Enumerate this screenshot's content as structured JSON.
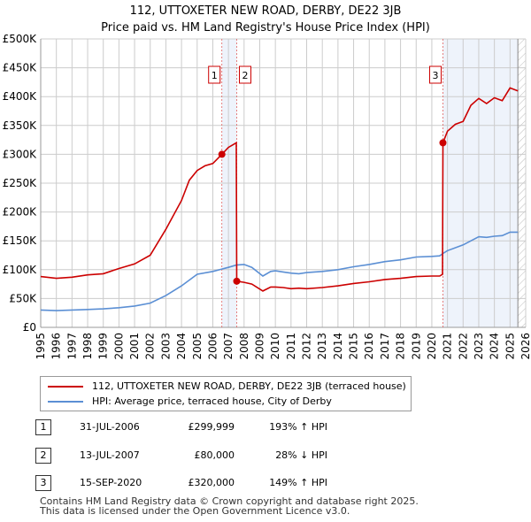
{
  "chart_data": {
    "type": "line",
    "title": "112, UTTOXETER NEW ROAD, DERBY, DE22 3JB",
    "subtitle": "Price paid vs. HM Land Registry's House Price Index (HPI)",
    "xlabel": "",
    "ylabel": "",
    "xlim": [
      1995,
      2026
    ],
    "ylim": [
      0,
      500000
    ],
    "y_ticks": [
      "£0",
      "£50K",
      "£100K",
      "£150K",
      "£200K",
      "£250K",
      "£300K",
      "£350K",
      "£400K",
      "£450K",
      "£500K"
    ],
    "x_ticks": [
      "1995",
      "1996",
      "1997",
      "1998",
      "1999",
      "2000",
      "2001",
      "2002",
      "2003",
      "2004",
      "2005",
      "2006",
      "2007",
      "2008",
      "2009",
      "2010",
      "2011",
      "2012",
      "2013",
      "2014",
      "2015",
      "2016",
      "2017",
      "2018",
      "2019",
      "2020",
      "2021",
      "2022",
      "2023",
      "2024",
      "2025",
      "2026"
    ],
    "grid": true,
    "series": [
      {
        "name": "112, UTTOXETER NEW ROAD, DERBY, DE22 3JB (terraced house)",
        "color": "#cc0000",
        "x": [
          1995,
          1996,
          1997,
          1998,
          1999,
          2000,
          2001,
          2002,
          2003,
          2004,
          2004.5,
          2005,
          2005.5,
          2006,
          2006.58,
          2007,
          2007.5,
          2007.53,
          2008,
          2008.5,
          2009.2,
          2009.7,
          2010,
          2010.5,
          2011,
          2011.5,
          2012,
          2013,
          2014,
          2015,
          2016,
          2017,
          2018,
          2019,
          2020,
          2020.5,
          2020.68,
          2020.71,
          2021,
          2021.5,
          2022,
          2022.5,
          2023,
          2023.5,
          2024,
          2024.5,
          2025,
          2025.5
        ],
        "y": [
          88000,
          85000,
          87000,
          91000,
          93000,
          102000,
          110000,
          125000,
          170000,
          220000,
          255000,
          272000,
          280000,
          284000,
          299999,
          312000,
          320000,
          80000,
          78000,
          75000,
          63000,
          70000,
          70000,
          69000,
          67000,
          68000,
          67000,
          69000,
          72000,
          76000,
          79000,
          83000,
          85000,
          88000,
          89000,
          89000,
          92000,
          320000,
          340000,
          352000,
          357000,
          385000,
          397000,
          388000,
          398000,
          393000,
          415000,
          410000
        ]
      },
      {
        "name": "HPI: Average price, terraced house, City of Derby",
        "color": "#5b8fd4",
        "x": [
          1995,
          1996,
          1997,
          1998,
          1999,
          2000,
          2001,
          2002,
          2003,
          2004,
          2005,
          2006,
          2006.58,
          2007,
          2007.5,
          2008,
          2008.5,
          2009.2,
          2009.7,
          2010,
          2010.5,
          2011,
          2011.5,
          2012,
          2013,
          2014,
          2015,
          2016,
          2017,
          2018,
          2019,
          2020,
          2020.5,
          2020.71,
          2021,
          2022,
          2022.5,
          2023,
          2023.5,
          2024,
          2024.5,
          2025,
          2025.5
        ],
        "y": [
          30000,
          29000,
          30000,
          31000,
          32000,
          34000,
          37000,
          42000,
          55000,
          72000,
          92000,
          97000,
          101000,
          104000,
          108000,
          109000,
          104000,
          89000,
          97000,
          98000,
          96000,
          94000,
          93000,
          95000,
          97000,
          100000,
          105000,
          109000,
          114000,
          117000,
          122000,
          123000,
          124000,
          128000,
          133000,
          143000,
          150000,
          157000,
          156000,
          158000,
          159000,
          165000,
          165000
        ]
      }
    ],
    "sales": [
      {
        "label": "1",
        "x": 2006.58,
        "y": 299999
      },
      {
        "label": "2",
        "x": 2007.53,
        "y": 80000
      },
      {
        "label": "3",
        "x": 2020.71,
        "y": 320000
      }
    ],
    "legend_position": "below"
  },
  "table": [
    {
      "num": "1",
      "date": "31-JUL-2006",
      "price": "£299,999",
      "hpi": "193% ↑ HPI"
    },
    {
      "num": "2",
      "date": "13-JUL-2007",
      "price": "£80,000",
      "hpi": "28% ↓ HPI"
    },
    {
      "num": "3",
      "date": "15-SEP-2020",
      "price": "£320,000",
      "hpi": "149% ↑ HPI"
    }
  ],
  "footer": [
    "Contains HM Land Registry data © Crown copyright and database right 2025.",
    "This data is licensed under the Open Government Licence v3.0."
  ]
}
